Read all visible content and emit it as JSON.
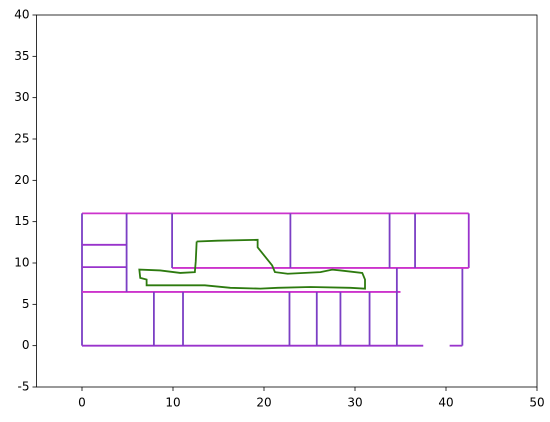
{
  "chart_data": {
    "type": "line",
    "xlim": [
      -5,
      50
    ],
    "ylim": [
      -5,
      40
    ],
    "xticks": [
      0,
      10,
      20,
      30,
      40,
      50
    ],
    "yticks": [
      -5,
      0,
      5,
      10,
      15,
      20,
      25,
      30,
      35,
      40
    ],
    "series": [
      {
        "color": "#cc33cc",
        "x": [
          0,
          42.5
        ],
        "values": [
          16,
          16
        ]
      },
      {
        "color": "#7b3fc4",
        "x": [
          0,
          0
        ],
        "values": [
          0,
          16
        ]
      },
      {
        "color": "#9933cc",
        "x": [
          0,
          37.5
        ],
        "values": [
          0,
          0
        ]
      },
      {
        "color": "#9933cc",
        "x": [
          40.4,
          41.8
        ],
        "values": [
          0,
          0
        ]
      },
      {
        "color": "#7b3fc4",
        "x": [
          41.8,
          41.8
        ],
        "values": [
          0,
          9.4
        ]
      },
      {
        "color": "#9933cc",
        "x": [
          42.5,
          42.5
        ],
        "values": [
          9.4,
          16
        ]
      },
      {
        "color": "#9933cc",
        "x": [
          0,
          4.9
        ],
        "values": [
          9.5,
          9.5
        ]
      },
      {
        "color": "#9933cc",
        "x": [
          0,
          4.9
        ],
        "values": [
          12.2,
          12.2
        ]
      },
      {
        "color": "#cc33cc",
        "x": [
          9.9,
          42.5
        ],
        "values": [
          9.4,
          9.4
        ]
      },
      {
        "color": "#cc33cc",
        "x": [
          0,
          35
        ],
        "values": [
          6.5,
          6.5
        ]
      },
      {
        "color": "#7b3fc4",
        "x": [
          4.9,
          4.9
        ],
        "values": [
          6.5,
          16
        ]
      },
      {
        "color": "#7b3fc4",
        "x": [
          9.9,
          9.9
        ],
        "values": [
          9.4,
          16
        ]
      },
      {
        "color": "#7b3fc4",
        "x": [
          22.9,
          22.9
        ],
        "values": [
          9.4,
          16
        ]
      },
      {
        "color": "#7b3fc4",
        "x": [
          33.8,
          33.8
        ],
        "values": [
          9.4,
          16
        ]
      },
      {
        "color": "#7b3fc4",
        "x": [
          36.6,
          36.6
        ],
        "values": [
          9.4,
          16
        ]
      },
      {
        "color": "#7b3fc4",
        "x": [
          34.6,
          34.6
        ],
        "values": [
          0,
          9.4
        ]
      },
      {
        "color": "#7b3fc4",
        "x": [
          7.9,
          7.9
        ],
        "values": [
          0,
          6.5
        ]
      },
      {
        "color": "#7b3fc4",
        "x": [
          11.1,
          11.1
        ],
        "values": [
          0,
          6.5
        ]
      },
      {
        "color": "#7b3fc4",
        "x": [
          22.8,
          22.8
        ],
        "values": [
          0,
          6.5
        ]
      },
      {
        "color": "#7b3fc4",
        "x": [
          25.8,
          25.8
        ],
        "values": [
          0,
          6.5
        ]
      },
      {
        "color": "#7b3fc4",
        "x": [
          28.4,
          28.4
        ],
        "values": [
          0,
          6.5
        ]
      },
      {
        "color": "#7b3fc4",
        "x": [
          31.6,
          31.6
        ],
        "values": [
          0,
          6.5
        ]
      },
      {
        "color": "#2d7a0f",
        "x": [
          12.6,
          14.9,
          19.3,
          19.3,
          20.9,
          21.2,
          22.6,
          26.2,
          27.5,
          28.4,
          30.8,
          31.1,
          31.1,
          29.5,
          25.1,
          21.5,
          19.6,
          16.3,
          13.5,
          7.1,
          7.1,
          6.4,
          6.3,
          8.6,
          10.8,
          12.4,
          12.5,
          12.6
        ],
        "values": [
          12.6,
          12.7,
          12.8,
          11.9,
          9.7,
          8.9,
          8.7,
          8.9,
          9.2,
          9.1,
          8.8,
          8.0,
          6.9,
          7.0,
          7.1,
          7.0,
          6.9,
          7.0,
          7.3,
          7.3,
          8.0,
          8.2,
          9.2,
          9.1,
          8.8,
          8.9,
          10.2,
          12.6
        ]
      }
    ]
  }
}
